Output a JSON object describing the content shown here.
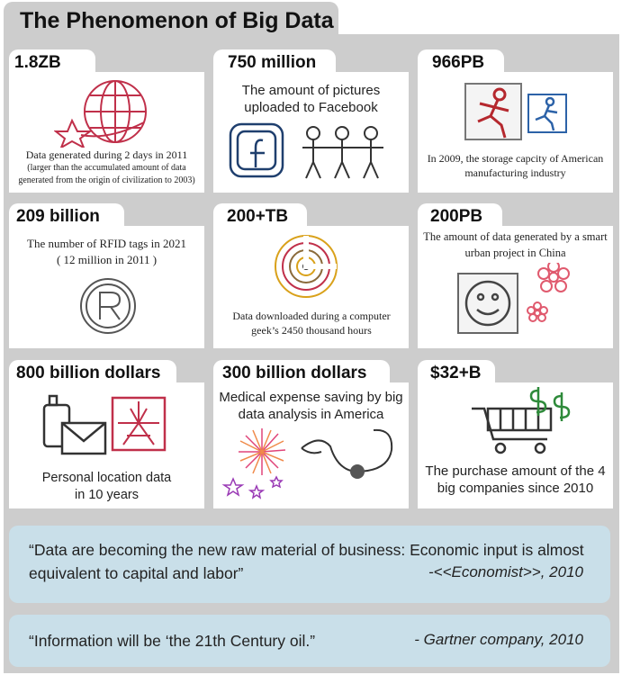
{
  "title": "The Phenomenon of Big Data",
  "cards": [
    {
      "headline": "1.8ZB",
      "line1": "Data generated during 2 days in 2011",
      "line2": "(larger than the accumulated amount of data generated from the origin of civilization to 2003)",
      "icon": "globe-star-icon",
      "color": "#c0304a"
    },
    {
      "headline": "750 million",
      "line1": "The amount of pictures uploaded to Facebook",
      "icon": "facebook-people-icon",
      "color": "#1f3f6e"
    },
    {
      "headline": "966PB",
      "line1": "In 2009, the storage capcity of American manufacturing industry",
      "icon": "running-man-icon",
      "color": "#2c62a8"
    },
    {
      "headline": "209 billion",
      "line1": "The number of RFID tags in 2021",
      "line2": "( 12 million in 2011 )",
      "icon": "registered-icon",
      "color": "#555555"
    },
    {
      "headline": "200+TB",
      "line1": "Data downloaded during a computer geek’s 2450 thousand hours",
      "icon": "spiral-disc-icon",
      "color": "#d9a11a"
    },
    {
      "headline": "200PB",
      "line1": "The amount of data generated by a smart urban project in China",
      "icon": "smiley-flowers-icon",
      "color": "#e05a6e"
    },
    {
      "headline": "800 billion dollars",
      "line1": "Personal location data",
      "line2": "in 10 years",
      "icon": "phone-mail-icon",
      "color": "#c0304a"
    },
    {
      "headline": "300 billion dollars",
      "line1": "Medical expense saving by big data analysis in America",
      "icon": "stethoscope-fireworks-icon",
      "color": "#e0457a"
    },
    {
      "headline": "$32+B",
      "line1": "The purchase amount of the 4 big companies since 2010",
      "icon": "shopping-cart-money-icon",
      "color": "#2e8a3a"
    }
  ],
  "quotes": [
    {
      "text": "“Data are becoming the new raw material of business: Economic input is almost equivalent to capital and labor”",
      "source": "-<<Economist>>, 2010"
    },
    {
      "text": "“Information will be ‘the 21th Century oil.”",
      "source": "- Gartner company, 2010"
    }
  ],
  "colors": {
    "panel": "#cdcdcd",
    "quote_bg": "#c9dfe9",
    "card": "#ffffff"
  }
}
